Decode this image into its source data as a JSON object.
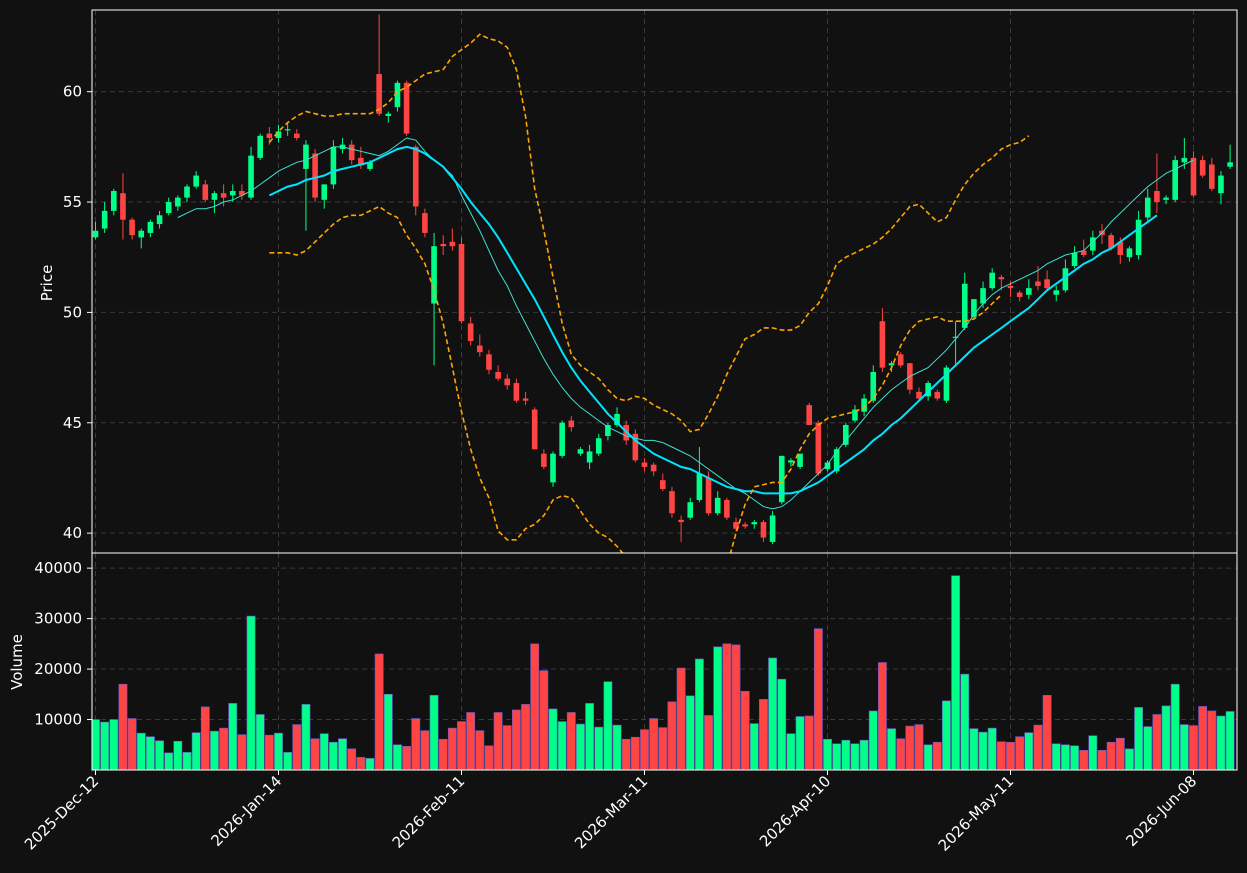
{
  "chart_data": {
    "type": "candlestick",
    "colors": {
      "background": "#111111",
      "grid": "#3a3a3a",
      "up": "#00ff88",
      "down": "#ff4444",
      "ma_fast": "#40e0d0",
      "ma_slow": "#00e5ff",
      "bollinger": "#ffa500",
      "text": "#ffffff",
      "frame": "#ffffff"
    },
    "price_panel": {
      "ylabel": "Price",
      "yticks": [
        40,
        45,
        50,
        55,
        60
      ],
      "ylim": [
        39.1,
        63.7
      ],
      "legend": "none"
    },
    "volume_panel": {
      "ylabel": "Volume",
      "yticks": [
        10000,
        20000,
        30000,
        40000
      ],
      "ylim": [
        0,
        43000
      ]
    },
    "xticks": [
      {
        "index": 0,
        "label": "2025-Dec-12"
      },
      {
        "index": 20,
        "label": "2026-Jan-14"
      },
      {
        "index": 40,
        "label": "2026-Feb-11"
      },
      {
        "index": 60,
        "label": "2026-Mar-11"
      },
      {
        "index": 80,
        "label": "2026-Apr-10"
      },
      {
        "index": 100,
        "label": "2026-May-11"
      },
      {
        "index": 120,
        "label": "2026-Jun-08"
      }
    ],
    "ohlc": [
      [
        53.4,
        54.1,
        53.3,
        53.7
      ],
      [
        53.8,
        55.0,
        53.6,
        54.6
      ],
      [
        54.6,
        55.6,
        54.4,
        55.5
      ],
      [
        55.4,
        56.3,
        53.3,
        54.2
      ],
      [
        54.2,
        54.3,
        53.3,
        53.5
      ],
      [
        53.4,
        53.8,
        52.9,
        53.7
      ],
      [
        53.6,
        54.2,
        53.4,
        54.1
      ],
      [
        54.0,
        54.6,
        53.8,
        54.4
      ],
      [
        54.5,
        55.2,
        54.4,
        55.0
      ],
      [
        54.8,
        55.3,
        54.6,
        55.2
      ],
      [
        55.2,
        55.8,
        55.0,
        55.7
      ],
      [
        55.7,
        56.4,
        55.6,
        56.2
      ],
      [
        55.8,
        56.0,
        55.0,
        55.1
      ],
      [
        55.1,
        55.5,
        54.5,
        55.4
      ],
      [
        55.4,
        55.8,
        54.8,
        55.2
      ],
      [
        55.3,
        55.8,
        55.0,
        55.5
      ],
      [
        55.5,
        55.8,
        55.1,
        55.3
      ],
      [
        55.2,
        57.5,
        55.1,
        57.1
      ],
      [
        57.0,
        58.1,
        56.9,
        58.0
      ],
      [
        58.1,
        58.4,
        57.6,
        57.9
      ],
      [
        57.9,
        58.5,
        57.7,
        58.2
      ],
      [
        58.3,
        58.6,
        58.0,
        58.3
      ],
      [
        58.1,
        58.3,
        57.8,
        57.9
      ],
      [
        56.5,
        57.8,
        53.7,
        57.6
      ],
      [
        57.2,
        57.4,
        55.0,
        55.2
      ],
      [
        55.1,
        55.8,
        54.7,
        55.8
      ],
      [
        55.8,
        57.8,
        55.6,
        57.5
      ],
      [
        57.4,
        57.9,
        57.2,
        57.6
      ],
      [
        57.6,
        57.8,
        56.7,
        56.9
      ],
      [
        57.0,
        57.5,
        56.5,
        56.7
      ],
      [
        56.5,
        56.9,
        56.4,
        56.8
      ],
      [
        60.8,
        63.5,
        58.9,
        59.0
      ],
      [
        58.9,
        59.1,
        58.6,
        59.0
      ],
      [
        59.3,
        60.5,
        59.1,
        60.4
      ],
      [
        60.4,
        60.5,
        58.0,
        58.1
      ],
      [
        57.5,
        57.6,
        54.4,
        54.8
      ],
      [
        54.5,
        54.7,
        53.4,
        53.6
      ],
      [
        50.4,
        53.6,
        47.6,
        53.0
      ],
      [
        53.1,
        53.5,
        52.6,
        53.0
      ],
      [
        53.2,
        53.8,
        52.8,
        53.0
      ],
      [
        53.1,
        53.4,
        49.5,
        49.6
      ],
      [
        49.5,
        49.8,
        48.5,
        48.7
      ],
      [
        48.5,
        49.0,
        48.0,
        48.2
      ],
      [
        48.1,
        48.3,
        47.2,
        47.4
      ],
      [
        47.3,
        47.6,
        46.9,
        47.0
      ],
      [
        47.0,
        47.2,
        46.5,
        46.7
      ],
      [
        46.8,
        47.0,
        45.9,
        46.0
      ],
      [
        46.1,
        46.4,
        45.8,
        46.0
      ],
      [
        45.6,
        45.7,
        43.8,
        43.8
      ],
      [
        43.6,
        43.8,
        42.9,
        43.0
      ],
      [
        42.3,
        43.7,
        42.1,
        43.6
      ],
      [
        43.5,
        45.1,
        43.4,
        45.0
      ],
      [
        45.1,
        45.3,
        44.6,
        44.8
      ],
      [
        43.6,
        43.9,
        43.5,
        43.8
      ],
      [
        43.2,
        44.0,
        42.9,
        43.7
      ],
      [
        43.6,
        44.5,
        43.5,
        44.3
      ],
      [
        44.4,
        45.0,
        44.2,
        44.9
      ],
      [
        44.9,
        45.7,
        44.8,
        45.4
      ],
      [
        44.9,
        45.1,
        44.0,
        44.2
      ],
      [
        44.5,
        44.7,
        43.2,
        43.3
      ],
      [
        43.2,
        43.4,
        42.8,
        43.0
      ],
      [
        43.1,
        43.2,
        42.6,
        42.8
      ],
      [
        42.4,
        42.7,
        41.9,
        42.0
      ],
      [
        41.9,
        42.1,
        40.7,
        40.9
      ],
      [
        40.6,
        40.8,
        39.6,
        40.5
      ],
      [
        40.7,
        41.6,
        40.6,
        41.4
      ],
      [
        41.5,
        43.9,
        41.4,
        42.7
      ],
      [
        42.5,
        42.8,
        40.8,
        40.9
      ],
      [
        40.9,
        41.9,
        40.8,
        41.6
      ],
      [
        41.5,
        41.6,
        40.6,
        40.7
      ],
      [
        40.5,
        40.7,
        40.1,
        40.2
      ],
      [
        40.4,
        40.5,
        40.2,
        40.3
      ],
      [
        40.4,
        40.6,
        40.2,
        40.5
      ],
      [
        40.5,
        40.6,
        39.6,
        39.8
      ],
      [
        39.6,
        41.0,
        39.5,
        40.8
      ],
      [
        41.4,
        43.5,
        41.3,
        43.5
      ],
      [
        43.2,
        43.4,
        43.0,
        43.3
      ],
      [
        43.0,
        43.6,
        42.9,
        43.6
      ],
      [
        45.8,
        45.9,
        44.9,
        44.9
      ],
      [
        45.0,
        45.1,
        42.6,
        42.7
      ],
      [
        42.9,
        43.3,
        42.8,
        43.2
      ],
      [
        42.8,
        43.9,
        42.7,
        43.8
      ],
      [
        44.0,
        45.0,
        43.9,
        44.9
      ],
      [
        45.1,
        45.8,
        45.0,
        45.6
      ],
      [
        45.5,
        46.3,
        45.3,
        46.1
      ],
      [
        46.0,
        47.6,
        45.9,
        47.3
      ],
      [
        49.6,
        50.2,
        47.3,
        47.5
      ],
      [
        47.6,
        47.8,
        47.3,
        47.7
      ],
      [
        48.1,
        48.2,
        47.5,
        47.6
      ],
      [
        47.7,
        47.7,
        46.3,
        46.5
      ],
      [
        46.4,
        46.6,
        46.0,
        46.1
      ],
      [
        46.2,
        46.9,
        46.0,
        46.8
      ],
      [
        46.4,
        46.5,
        46.0,
        46.1
      ],
      [
        46.0,
        47.6,
        45.9,
        47.5
      ],
      [
        48.9,
        49.6,
        47.6,
        48.9
      ],
      [
        49.3,
        51.8,
        49.2,
        51.3
      ],
      [
        49.8,
        50.6,
        49.7,
        50.6
      ],
      [
        50.4,
        51.4,
        50.2,
        51.1
      ],
      [
        51.1,
        52.0,
        51.0,
        51.8
      ],
      [
        51.6,
        51.7,
        51.0,
        51.5
      ],
      [
        51.2,
        51.4,
        50.7,
        51.1
      ],
      [
        50.9,
        51.0,
        50.5,
        50.7
      ],
      [
        50.8,
        51.5,
        50.6,
        51.1
      ],
      [
        51.4,
        52.1,
        51.0,
        51.2
      ],
      [
        51.5,
        51.9,
        51.0,
        51.1
      ],
      [
        50.8,
        51.2,
        50.5,
        51.0
      ],
      [
        51.0,
        52.4,
        50.9,
        52.0
      ],
      [
        52.1,
        53.0,
        52.0,
        52.7
      ],
      [
        52.8,
        53.3,
        52.5,
        52.6
      ],
      [
        52.8,
        53.7,
        52.6,
        53.4
      ],
      [
        53.7,
        54.0,
        53.1,
        53.5
      ],
      [
        53.5,
        53.6,
        52.8,
        52.9
      ],
      [
        53.2,
        53.4,
        52.2,
        52.6
      ],
      [
        52.5,
        53.0,
        52.3,
        52.9
      ],
      [
        52.6,
        54.6,
        52.4,
        54.2
      ],
      [
        54.3,
        55.6,
        54.1,
        55.2
      ],
      [
        55.5,
        57.2,
        54.5,
        55.0
      ],
      [
        55.1,
        55.3,
        54.9,
        55.2
      ],
      [
        55.1,
        57.1,
        55.0,
        56.9
      ],
      [
        56.8,
        57.9,
        56.5,
        57.0
      ],
      [
        57.0,
        57.3,
        55.2,
        55.3
      ],
      [
        56.9,
        57.1,
        56.1,
        56.2
      ],
      [
        56.7,
        57.0,
        55.5,
        55.6
      ],
      [
        55.4,
        56.4,
        54.9,
        56.2
      ],
      [
        56.6,
        57.6,
        56.5,
        56.8
      ]
    ],
    "volume": [
      10000,
      9500,
      10000,
      17000,
      10200,
      7300,
      6600,
      5800,
      3400,
      5700,
      3500,
      7400,
      12500,
      7700,
      8300,
      13200,
      7000,
      30500,
      11000,
      6900,
      7300,
      3500,
      9000,
      13000,
      6200,
      7200,
      5500,
      6200,
      4200,
      2500,
      2300,
      23000,
      15000,
      5000,
      4700,
      10200,
      7800,
      14800,
      6100,
      8300,
      9600,
      11400,
      7800,
      4800,
      11400,
      8800,
      11900,
      13000,
      25000,
      19700,
      12100,
      9600,
      11400,
      9100,
      13200,
      8500,
      17500,
      8900,
      6100,
      6500,
      8000,
      10200,
      8400,
      13500,
      20200,
      14700,
      22000,
      10800,
      24400,
      25000,
      24800,
      15600,
      9200,
      14000,
      22200,
      18000,
      7200,
      10600,
      10700,
      28000,
      6100,
      5200,
      5900,
      5200,
      5900,
      11700,
      21300,
      8200,
      6200,
      8700,
      9000,
      5000,
      5500,
      13700,
      38500,
      19000,
      8200,
      7500,
      8300,
      5600,
      5500,
      6600,
      7400,
      8900,
      14800,
      5200,
      5000,
      4800,
      3900,
      6800,
      3900,
      5500,
      6300,
      4200,
      12400,
      8600,
      11000,
      12700,
      17000,
      9000,
      8800,
      12600,
      11700,
      10700,
      11600
    ],
    "series": [
      {
        "name": "",
        "kind": "ma_fast",
        "start_index": 9,
        "values": [
          54.3,
          54.5,
          54.7,
          54.7,
          54.8,
          55.0,
          55.1,
          55.3,
          55.5,
          55.8,
          56.1,
          56.4,
          56.6,
          56.8,
          56.9,
          57.1,
          57.3,
          57.5,
          57.5,
          57.4,
          57.3,
          57.2,
          57.1,
          57.3,
          57.6,
          57.9,
          57.8,
          57.3,
          56.9,
          56.6,
          56.2,
          55.3,
          54.5,
          53.7,
          52.8,
          51.9,
          51.2,
          50.3,
          49.5,
          48.7,
          47.9,
          47.2,
          46.6,
          46.1,
          45.7,
          45.4,
          45.1,
          44.8,
          44.6,
          44.4,
          44.3,
          44.2,
          44.2,
          44.1,
          43.9,
          43.7,
          43.5,
          43.2,
          42.9,
          42.6,
          42.3,
          42.0,
          41.8,
          41.5,
          41.2,
          41.1,
          41.2,
          41.5,
          41.9,
          42.3,
          42.7,
          43.1,
          43.7,
          44.2,
          44.7,
          45.2,
          45.7,
          46.1,
          46.5,
          46.8,
          47.1,
          47.3,
          47.5,
          47.9,
          48.3,
          48.8,
          49.3,
          49.9,
          50.4,
          50.8,
          51.1,
          51.3,
          51.5,
          51.7,
          51.9,
          52.2,
          52.4,
          52.6,
          52.7,
          52.8,
          53.2,
          53.6,
          54.1,
          54.5,
          54.9,
          55.3,
          55.7,
          56.0,
          56.3,
          56.5,
          56.7,
          56.9
        ]
      },
      {
        "name": "",
        "kind": "ma_slow",
        "start_index": 19,
        "values": [
          55.3,
          55.5,
          55.7,
          55.8,
          56.0,
          56.1,
          56.2,
          56.4,
          56.5,
          56.6,
          56.7,
          56.8,
          57.0,
          57.2,
          57.4,
          57.5,
          57.4,
          57.2,
          56.9,
          56.6,
          56.1,
          55.6,
          55.0,
          54.5,
          54.0,
          53.4,
          52.7,
          52.0,
          51.3,
          50.6,
          49.8,
          49.0,
          48.2,
          47.5,
          46.9,
          46.4,
          45.9,
          45.4,
          45.0,
          44.6,
          44.2,
          43.9,
          43.6,
          43.4,
          43.2,
          43.0,
          42.9,
          42.7,
          42.5,
          42.3,
          42.1,
          42.0,
          41.9,
          41.9,
          41.8,
          41.8,
          41.8,
          41.8,
          41.9,
          42.1,
          42.3,
          42.6,
          42.9,
          43.2,
          43.5,
          43.8,
          44.2,
          44.5,
          44.9,
          45.2,
          45.6,
          46.0,
          46.4,
          46.8,
          47.2,
          47.6,
          48.0,
          48.4,
          48.7,
          49.0,
          49.3,
          49.6,
          49.9,
          50.2,
          50.6,
          51.0,
          51.3,
          51.6,
          51.9,
          52.2,
          52.4,
          52.7,
          52.9,
          53.2,
          53.5,
          53.8,
          54.1,
          54.4
        ]
      },
      {
        "name": "",
        "kind": "bollinger_upper",
        "start_index": 19,
        "values": [
          57.7,
          58.2,
          58.6,
          58.9,
          59.1,
          59.0,
          58.9,
          58.9,
          59.0,
          59.0,
          59.0,
          59.0,
          59.2,
          59.5,
          60.0,
          60.2,
          60.5,
          60.8,
          60.9,
          61.0,
          61.6,
          61.9,
          62.2,
          62.6,
          62.4,
          62.3,
          62.0,
          61.0,
          58.9,
          55.6,
          53.7,
          51.6,
          49.5,
          48.1,
          47.6,
          47.3,
          47.0,
          46.5,
          46.1,
          46.0,
          46.2,
          46.1,
          45.8,
          45.6,
          45.4,
          45.1,
          44.6,
          44.7,
          45.4,
          46.2,
          47.2,
          48.0,
          48.8,
          49.0,
          49.3,
          49.3,
          49.2,
          49.2,
          49.4,
          50.0,
          50.4,
          51.2,
          52.2,
          52.5,
          52.7,
          52.9,
          53.1,
          53.4,
          53.8,
          54.3,
          54.8,
          54.9,
          54.5,
          54.1,
          54.3,
          55.1,
          55.8,
          56.3,
          56.7,
          57.0,
          57.4,
          57.6,
          57.7,
          58.0
        ]
      },
      {
        "name": "",
        "kind": "bollinger_lower",
        "start_index": 19,
        "values": [
          52.7,
          52.7,
          52.7,
          52.6,
          52.8,
          53.2,
          53.6,
          54.0,
          54.3,
          54.4,
          54.4,
          54.6,
          54.8,
          54.5,
          54.3,
          53.5,
          52.9,
          52.2,
          51.0,
          49.5,
          47.5,
          45.5,
          43.8,
          42.5,
          41.6,
          40.1,
          39.7,
          39.7,
          40.2,
          40.4,
          40.8,
          41.5,
          41.7,
          41.6,
          41.0,
          40.4,
          40.0,
          39.8,
          39.4,
          38.9,
          38.6,
          38.3,
          37.5,
          37.5,
          37.5,
          37.6,
          37.3,
          37.0,
          36.8,
          37.2,
          38.5,
          40.0,
          41.3,
          42.1,
          42.2,
          42.3,
          42.3,
          42.9,
          43.8,
          44.5,
          44.9,
          45.2,
          45.3,
          45.4,
          45.5,
          45.7,
          46.1,
          46.7,
          47.5,
          48.5,
          49.2,
          49.6,
          49.7,
          49.8,
          49.6,
          49.6,
          49.6,
          49.7,
          50.0,
          50.4,
          50.8
        ]
      }
    ]
  }
}
